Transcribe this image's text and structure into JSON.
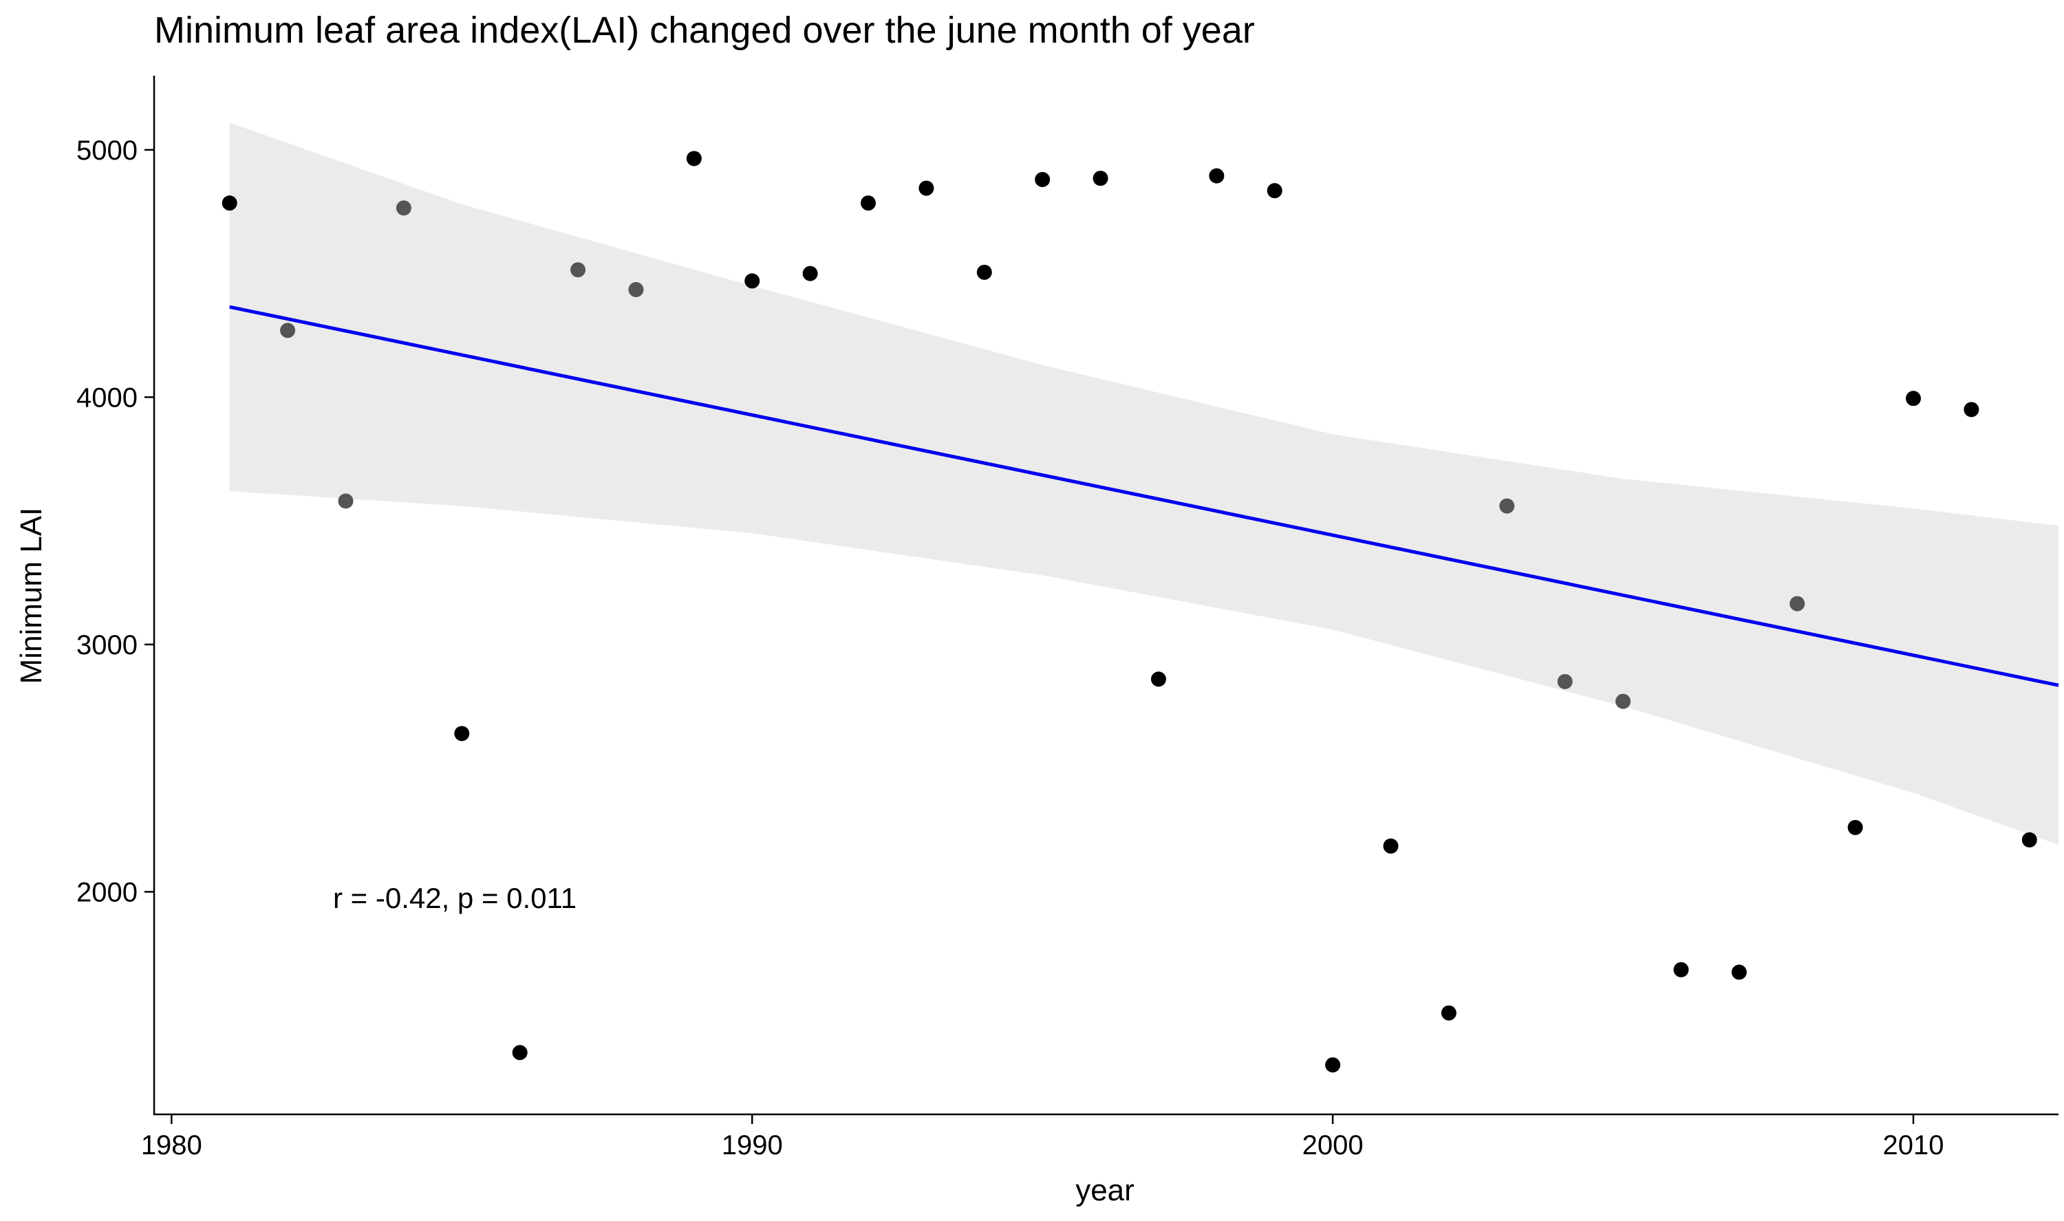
{
  "chart_data": {
    "type": "scatter",
    "title": "Minimum leaf area index(LAI) changed over the june month of year",
    "xlabel": "year",
    "ylabel": "Minimum LAI",
    "xlim": [
      1979.7,
      2012.5
    ],
    "ylim": [
      1100,
      5300
    ],
    "x_ticks": [
      1980,
      1990,
      2000,
      2010
    ],
    "y_ticks": [
      2000,
      3000,
      4000,
      5000
    ],
    "grid": false,
    "colors": {
      "points": "#000000",
      "points_faded": "#555555",
      "regression_line": "#0000ee",
      "confidence_band": "#ebebeb"
    },
    "annotation": "r = -0.42, p = 0.011",
    "points": [
      {
        "x": 1981,
        "y": 4785
      },
      {
        "x": 1982,
        "y": 4270
      },
      {
        "x": 1983,
        "y": 3580
      },
      {
        "x": 1984,
        "y": 4765
      },
      {
        "x": 1985,
        "y": 2640
      },
      {
        "x": 1986,
        "y": 1350
      },
      {
        "x": 1987,
        "y": 4515
      },
      {
        "x": 1988,
        "y": 4435
      },
      {
        "x": 1989,
        "y": 4965
      },
      {
        "x": 1990,
        "y": 4470
      },
      {
        "x": 1991,
        "y": 4500
      },
      {
        "x": 1992,
        "y": 4785
      },
      {
        "x": 1993,
        "y": 4845
      },
      {
        "x": 1994,
        "y": 4505
      },
      {
        "x": 1995,
        "y": 4880
      },
      {
        "x": 1996,
        "y": 4885
      },
      {
        "x": 1997,
        "y": 2860
      },
      {
        "x": 1998,
        "y": 4895
      },
      {
        "x": 1999,
        "y": 4835
      },
      {
        "x": 2000,
        "y": 1300
      },
      {
        "x": 2001,
        "y": 2185
      },
      {
        "x": 2002,
        "y": 1510
      },
      {
        "x": 2003,
        "y": 3560
      },
      {
        "x": 2004,
        "y": 2850
      },
      {
        "x": 2005,
        "y": 2770
      },
      {
        "x": 2006,
        "y": 1685
      },
      {
        "x": 2007,
        "y": 1675
      },
      {
        "x": 2008,
        "y": 3165
      },
      {
        "x": 2009,
        "y": 2260
      },
      {
        "x": 2010,
        "y": 3995
      },
      {
        "x": 2011,
        "y": 3950
      },
      {
        "x": 2012,
        "y": 2210
      }
    ],
    "faded_point_years": [
      1982,
      1983,
      1984,
      1987,
      1988,
      2003,
      2004,
      2005,
      2008
    ],
    "regression": {
      "x": [
        1981,
        2012.5
      ],
      "y": [
        4365,
        2835
      ]
    },
    "confidence_band": {
      "x": [
        1981,
        1985,
        1990,
        1995,
        2000,
        2005,
        2010,
        2012.5
      ],
      "lower": [
        3620,
        3560,
        3450,
        3280,
        3060,
        2750,
        2400,
        2190
      ],
      "upper": [
        5110,
        4780,
        4450,
        4130,
        3850,
        3670,
        3550,
        3480
      ]
    }
  }
}
